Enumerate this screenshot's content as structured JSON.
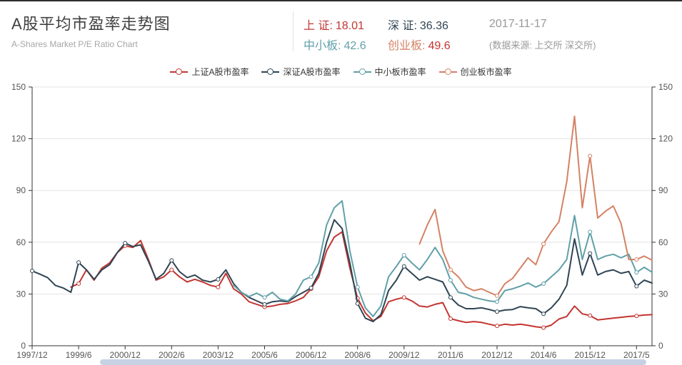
{
  "header": {
    "title": "A股平均市盈率走势图",
    "subtitle": "A-Shares Market P/E Ratio Chart",
    "stats": [
      {
        "name": "sse",
        "label": "上 证:",
        "value": "18.01",
        "label_color": "#c23531",
        "value_color": "#c23531"
      },
      {
        "name": "szse",
        "label": "深 证:",
        "value": "36.36",
        "label_color": "#2f4554",
        "value_color": "#2f4554"
      },
      {
        "name": "sme",
        "label": "中小板:",
        "value": "42.6",
        "label_color": "#61a0a8",
        "value_color": "#61a0a8"
      },
      {
        "name": "chinext",
        "label": "创业板:",
        "value": "49.6",
        "label_color": "#d48265",
        "value_color": "#c23531"
      }
    ],
    "date": "2017-11-17",
    "source": "(数据来源: 上交所 深交所)"
  },
  "legend": {
    "items": [
      {
        "name": "sse",
        "label": "上证A股市盈率",
        "color": "#c23531"
      },
      {
        "name": "szse",
        "label": "深证A股市盈率",
        "color": "#2f4554"
      },
      {
        "name": "sme",
        "label": "中小板市盈率",
        "color": "#61a0a8"
      },
      {
        "name": "chinext",
        "label": "创业板市盈率",
        "color": "#d48265"
      }
    ]
  },
  "chart_data": {
    "type": "line",
    "title": "A股平均市盈率走势图",
    "xlabel": "",
    "ylabel": "",
    "ylim": [
      0,
      150
    ],
    "y_ticks": [
      0,
      30,
      60,
      90,
      120,
      150
    ],
    "grid": true,
    "legend_position": "top",
    "x_tick_every": 6,
    "marker_every": 6,
    "x_tick_labels": [
      "1997/12",
      "1999/6",
      "2000/12",
      "2002/6",
      "2003/12",
      "2005/6",
      "2006/12",
      "2008/6",
      "2009/12",
      "2011/6",
      "2012/12",
      "2014/6",
      "2015/12",
      "2017/5"
    ],
    "categories": [
      "1997/12",
      "1998/3",
      "1998/6",
      "1998/9",
      "1998/12",
      "1999/3",
      "1999/6",
      "1999/9",
      "1999/12",
      "2000/3",
      "2000/6",
      "2000/9",
      "2000/12",
      "2001/3",
      "2001/6",
      "2001/9",
      "2001/12",
      "2002/3",
      "2002/6",
      "2002/9",
      "2002/12",
      "2003/3",
      "2003/6",
      "2003/9",
      "2003/12",
      "2004/3",
      "2004/6",
      "2004/9",
      "2004/12",
      "2005/3",
      "2005/6",
      "2005/9",
      "2005/12",
      "2006/3",
      "2006/6",
      "2006/9",
      "2006/12",
      "2007/3",
      "2007/6",
      "2007/9",
      "2007/12",
      "2008/3",
      "2008/6",
      "2008/9",
      "2008/12",
      "2009/3",
      "2009/6",
      "2009/9",
      "2009/12",
      "2010/3",
      "2010/6",
      "2010/9",
      "2010/12",
      "2011/3",
      "2011/6",
      "2011/9",
      "2011/12",
      "2012/3",
      "2012/6",
      "2012/9",
      "2012/12",
      "2013/3",
      "2013/6",
      "2013/9",
      "2013/12",
      "2014/3",
      "2014/6",
      "2014/9",
      "2014/12",
      "2015/3",
      "2015/6",
      "2015/9",
      "2015/12",
      "2016/3",
      "2016/6",
      "2016/9",
      "2016/12",
      "2017/3",
      "2017/5",
      "2017/8",
      "2017/11"
    ],
    "series": [
      {
        "name": "上证A股市盈率",
        "color": "#c23531",
        "values": [
          null,
          null,
          null,
          null,
          null,
          34,
          36,
          44,
          38,
          45,
          48,
          54,
          58,
          57,
          61,
          50,
          38,
          40,
          44,
          40,
          37,
          38.5,
          37,
          35,
          34,
          42,
          33,
          30,
          25.5,
          24,
          22.5,
          23,
          24,
          24.5,
          26,
          28,
          33,
          40,
          55,
          63,
          66,
          45,
          27.5,
          19,
          14.5,
          17,
          25.5,
          27,
          28,
          26,
          23,
          22.5,
          24,
          25,
          15.7,
          14.5,
          13.5,
          14,
          13.5,
          12.5,
          11.5,
          12.5,
          12,
          12.5,
          11.8,
          11,
          10.5,
          12,
          15.5,
          17,
          23,
          18.5,
          17.5,
          15,
          15.5,
          16,
          16.5,
          17,
          17.3,
          17.8,
          18.01
        ]
      },
      {
        "name": "深证A股市盈率",
        "color": "#2f4554",
        "values": [
          43.4,
          41.5,
          39.5,
          35,
          33.5,
          31,
          48.3,
          44,
          38.5,
          44,
          47,
          54,
          59.5,
          57.5,
          58.5,
          49,
          38.5,
          42,
          49.5,
          43,
          39.5,
          41,
          38,
          37,
          38.5,
          44,
          36,
          31,
          28,
          26,
          24,
          25.5,
          26,
          25.5,
          28.5,
          31,
          33.5,
          42,
          60,
          73,
          68,
          48,
          24.5,
          16,
          14,
          18,
          32,
          38,
          46,
          42,
          38,
          40,
          38.5,
          37,
          28,
          23.6,
          21.5,
          21.5,
          22,
          21,
          19.8,
          20.7,
          21,
          22.7,
          22,
          21.5,
          18.5,
          22,
          27,
          35,
          62,
          41,
          53.5,
          41,
          43,
          44,
          42,
          43,
          34.5,
          38,
          36.36
        ]
      },
      {
        "name": "中小板市盈率",
        "color": "#61a0a8",
        "values": [
          null,
          null,
          null,
          null,
          null,
          null,
          null,
          null,
          null,
          null,
          null,
          null,
          null,
          null,
          null,
          null,
          null,
          null,
          null,
          null,
          null,
          null,
          null,
          null,
          null,
          null,
          35,
          31,
          28.5,
          30.5,
          28,
          31,
          27,
          26,
          30,
          38,
          40,
          48,
          70,
          80,
          84,
          55,
          34,
          22,
          17,
          23,
          40,
          46,
          52.5,
          48,
          44,
          50,
          57,
          50,
          38,
          31,
          30,
          28,
          27,
          26,
          25.5,
          32,
          33,
          34.5,
          36.4,
          34,
          36,
          40,
          44,
          50,
          75.5,
          50,
          66,
          50,
          52,
          53,
          51,
          53,
          42.5,
          45.5,
          42.6
        ]
      },
      {
        "name": "创业板市盈率",
        "color": "#d48265",
        "values": [
          null,
          null,
          null,
          null,
          null,
          null,
          null,
          null,
          null,
          null,
          null,
          null,
          null,
          null,
          null,
          null,
          null,
          null,
          null,
          null,
          null,
          null,
          null,
          null,
          null,
          null,
          null,
          null,
          null,
          null,
          null,
          null,
          null,
          null,
          null,
          null,
          null,
          null,
          null,
          null,
          null,
          null,
          null,
          null,
          null,
          null,
          null,
          null,
          null,
          null,
          59,
          70,
          79,
          55,
          44,
          40,
          34,
          32,
          33,
          31,
          29,
          36,
          39,
          45,
          51,
          47,
          59,
          66,
          72,
          95,
          133,
          80,
          110,
          74,
          78,
          81,
          71,
          50,
          50,
          52,
          49.6
        ]
      }
    ]
  }
}
